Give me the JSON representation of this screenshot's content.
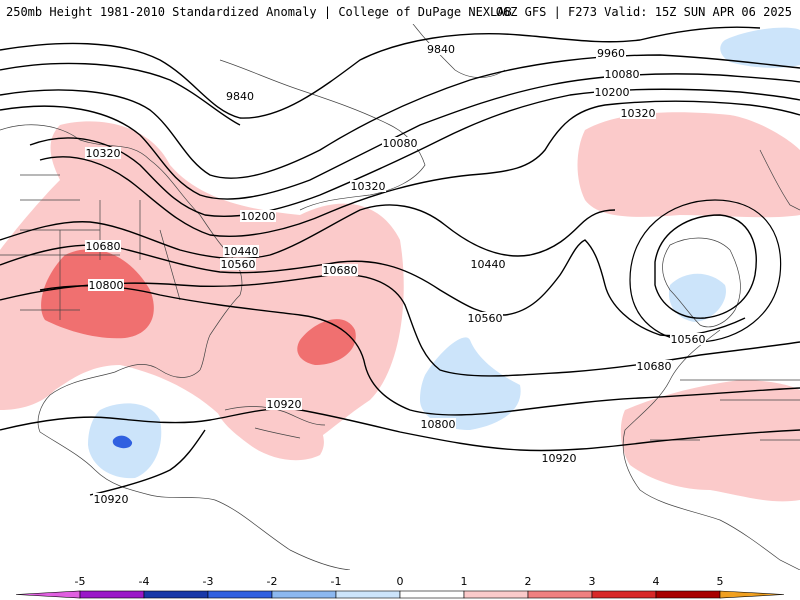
{
  "header": {
    "left": "250mb Height 1981-2010 Standardized Anomaly | College of DuPage NEXLAB",
    "right": "06Z GFS | F273 Valid: 15Z SUN APR 06 2025"
  },
  "contours": {
    "labels": [
      "9840",
      "9960",
      "10080",
      "10200",
      "10320",
      "10440",
      "10560",
      "10680",
      "10800",
      "10920"
    ]
  },
  "colorbar": {
    "ticks": [
      "-5",
      "-4",
      "-3",
      "-2",
      "-1",
      "0",
      "1",
      "2",
      "3",
      "4",
      "5"
    ],
    "colors": [
      "#e060e0",
      "#9a18c8",
      "#1838a8",
      "#3060e0",
      "#8cb8f0",
      "#cce4fa",
      "#ffffff",
      "#fbcaca",
      "#f08080",
      "#d82828",
      "#a80000",
      "#f0a020"
    ]
  }
}
